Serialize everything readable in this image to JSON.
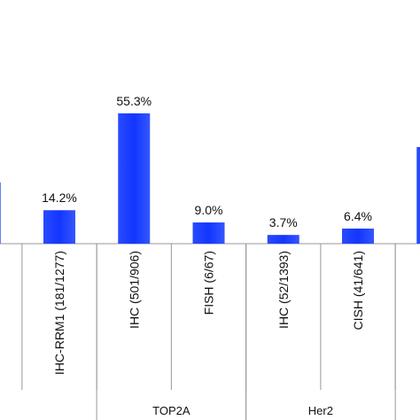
{
  "chart_data": {
    "type": "bar",
    "categories": [
      null,
      "IHC-RRM1 (181/1277)",
      "IHC (501/906)",
      "FISH (6/67)",
      "IHC (52/1393)",
      "CISH (41/641)",
      null
    ],
    "values": [
      26,
      14.2,
      55.3,
      9.0,
      3.7,
      6.4,
      41
    ],
    "value_labels": [
      null,
      "14.2%",
      "55.3%",
      "9.0%",
      "3.7%",
      "6.4%",
      null
    ],
    "groups": [
      {
        "label": "TOP2A",
        "start": 2,
        "end": 3
      },
      {
        "label": "Her2",
        "start": 4,
        "end": 5
      }
    ],
    "color": "#1f3dff",
    "ylim": [
      0,
      100
    ]
  }
}
